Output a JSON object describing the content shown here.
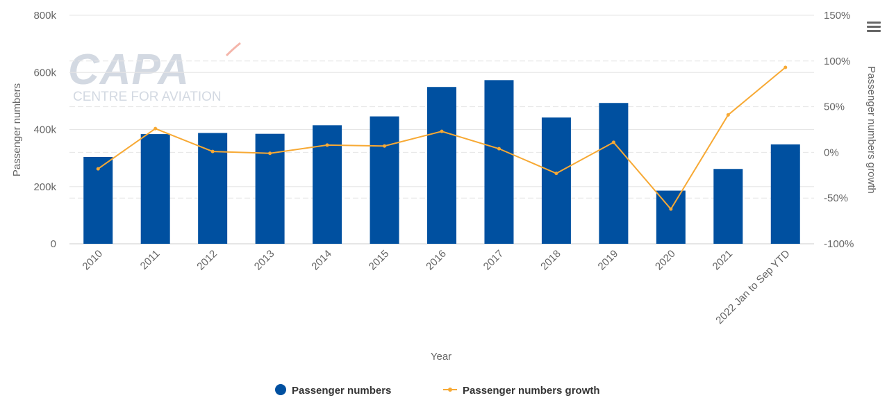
{
  "chart_data": {
    "type": "bar",
    "title": "",
    "xlabel": "Year",
    "ylabel": "Passenger numbers",
    "y2label": "Passenger numbers growth",
    "categories": [
      "2010",
      "2011",
      "2012",
      "2013",
      "2014",
      "2015",
      "2016",
      "2017",
      "2018",
      "2019",
      "2020",
      "2021",
      "2022 Jan to Sep YTD"
    ],
    "ylim": [
      0,
      800000
    ],
    "y2lim": [
      -100,
      150
    ],
    "y_ticks": [
      "0",
      "200k",
      "400k",
      "600k",
      "800k"
    ],
    "y2_ticks": [
      "-100%",
      "-50%",
      "0%",
      "50%",
      "100%",
      "150%"
    ],
    "grid": true,
    "legend_position": "bottom",
    "series": [
      {
        "name": "Passenger numbers",
        "type": "bar",
        "axis": "left",
        "color": "#0050a0",
        "values": [
          304000,
          384000,
          388000,
          385000,
          415000,
          446000,
          549000,
          573000,
          442000,
          493000,
          186000,
          262000,
          348000
        ]
      },
      {
        "name": "Passenger numbers growth",
        "type": "line",
        "axis": "right",
        "color": "#f7a934",
        "values": [
          -18,
          26,
          1,
          -1,
          8,
          7,
          23,
          4,
          -23,
          11,
          -62,
          41,
          93
        ]
      }
    ]
  },
  "watermark": {
    "brand": "CAPA",
    "tagline": "CENTRE FOR AVIATION"
  },
  "menu": {
    "icon": "hamburger-menu-icon"
  }
}
